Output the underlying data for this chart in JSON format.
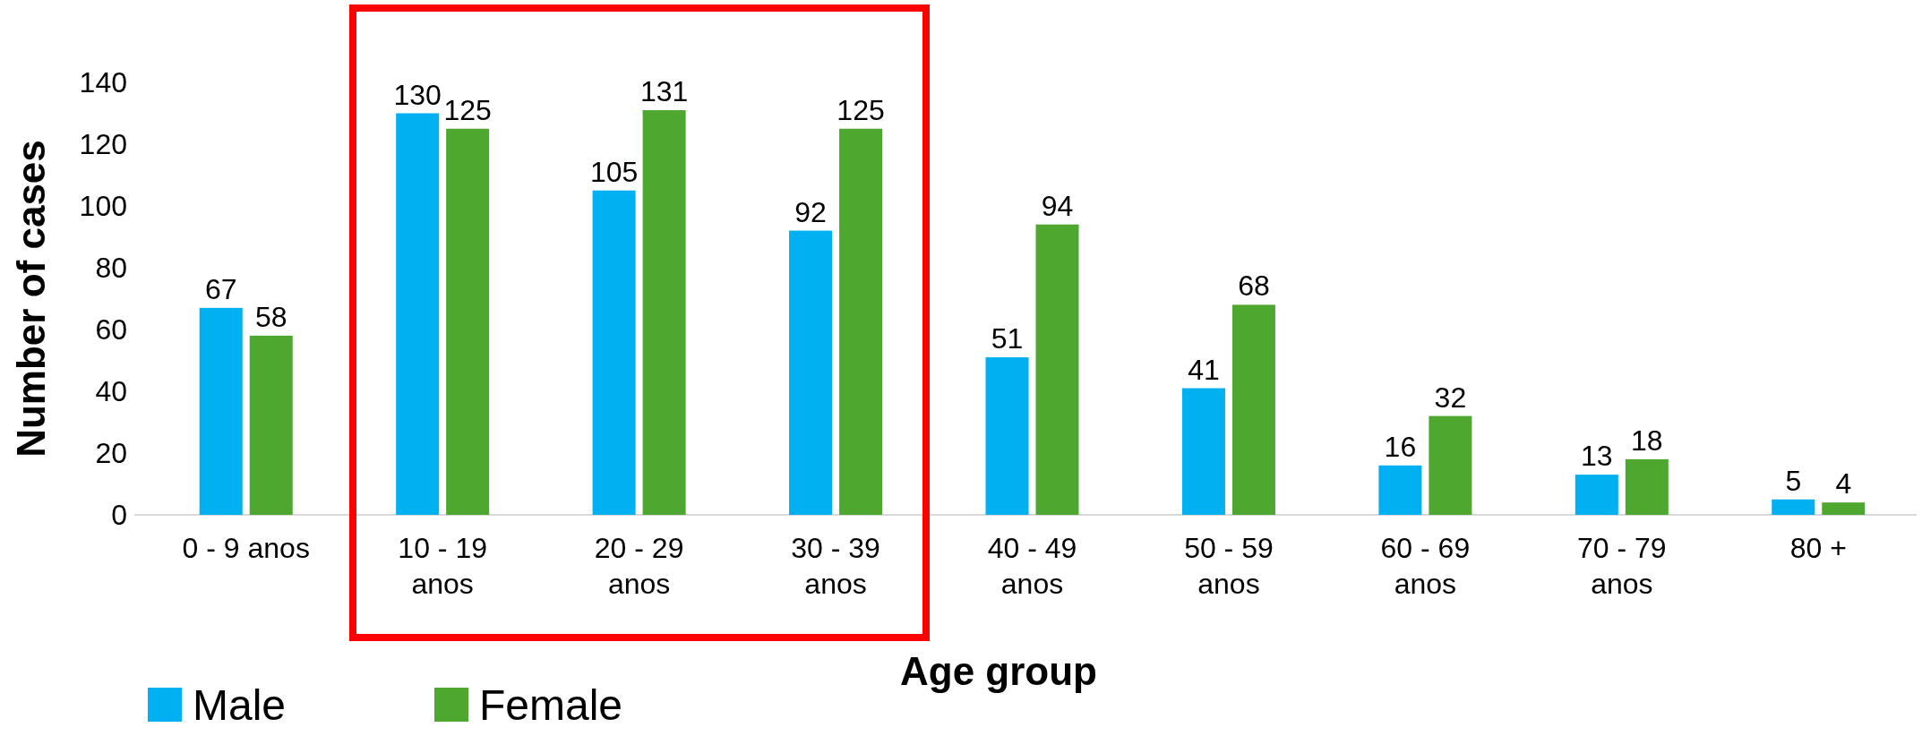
{
  "chart_data": {
    "type": "bar",
    "xlabel": "Age group",
    "ylabel": "Number of cases",
    "categories": [
      "0 - 9 anos",
      "10 - 19 anos",
      "20 - 29 anos",
      "30 - 39 anos",
      "40 - 49 anos",
      "50 - 59 anos",
      "60 - 69 anos",
      "70 - 79 anos",
      "80 +"
    ],
    "series": [
      {
        "name": "Male",
        "color": "#00b0f0",
        "values": [
          67,
          130,
          105,
          92,
          51,
          41,
          16,
          13,
          5
        ]
      },
      {
        "name": "Female",
        "color": "#4ea72e",
        "values": [
          58,
          125,
          131,
          125,
          94,
          68,
          32,
          18,
          4
        ]
      }
    ],
    "ylim": [
      0,
      140
    ],
    "yticks": [
      0,
      20,
      40,
      60,
      80,
      100,
      120,
      140
    ],
    "data_labels": true,
    "legend": "bottom left",
    "grid": false
  }
}
